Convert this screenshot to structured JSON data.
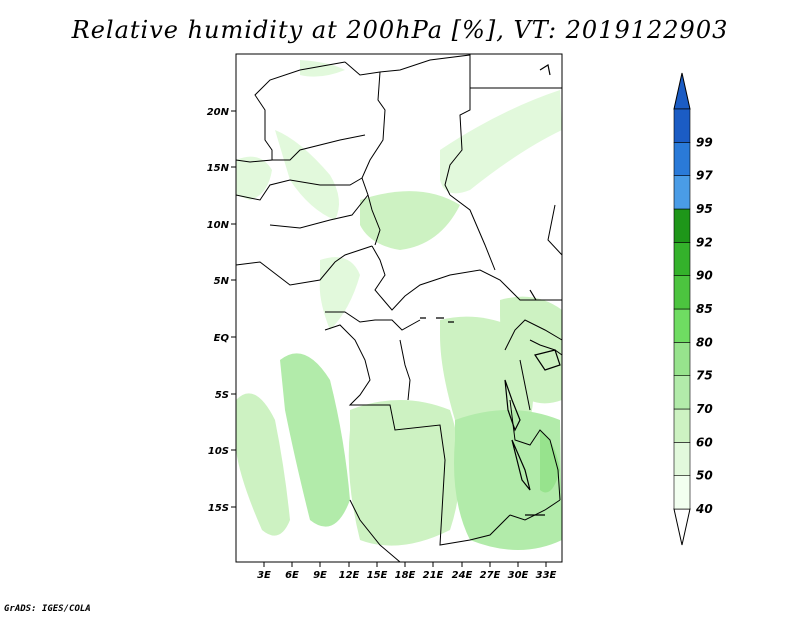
{
  "title": "Relative humidity at 200hPa [%], VT: 2019122903",
  "credit": "GrADS: IGES/COLA",
  "map": {
    "lat_ticks": [
      "20N",
      "15N",
      "10N",
      "5N",
      "EQ",
      "5S",
      "10S",
      "15S"
    ],
    "lon_ticks": [
      "3E",
      "6E",
      "9E",
      "12E",
      "15E",
      "18E",
      "21E",
      "24E",
      "27E",
      "30E",
      "33E"
    ]
  },
  "legend": {
    "levels": [
      {
        "label": "40",
        "color": "#f2fff0"
      },
      {
        "label": "50",
        "color": "#e2f9dc"
      },
      {
        "label": "60",
        "color": "#cdf2c2"
      },
      {
        "label": "70",
        "color": "#b2ebaa"
      },
      {
        "label": "75",
        "color": "#97e38d"
      },
      {
        "label": "80",
        "color": "#6fdc62"
      },
      {
        "label": "85",
        "color": "#4cc43f"
      },
      {
        "label": "90",
        "color": "#34b22b"
      },
      {
        "label": "92",
        "color": "#1e9619"
      },
      {
        "label": "95",
        "color": "#4a9ce6"
      },
      {
        "label": "97",
        "color": "#2a7ad8"
      },
      {
        "label": "99",
        "color": "#1b5cc4"
      }
    ]
  }
}
